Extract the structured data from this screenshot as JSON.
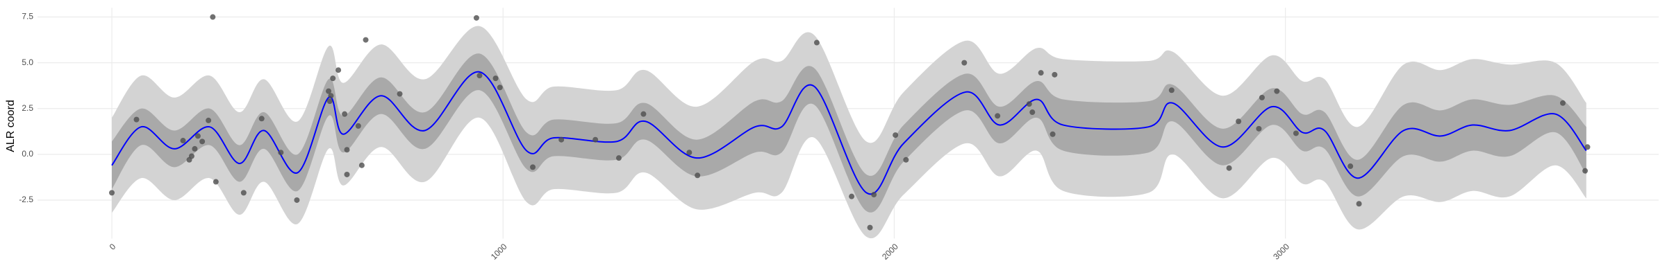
{
  "chart_data": {
    "type": "line",
    "y_label": "ALR coord",
    "xlim": [
      -190,
      3954
    ],
    "ylim": [
      -4.6,
      8.0
    ],
    "xticks": [
      0,
      1000,
      2000,
      3000
    ],
    "yticks": [
      -2.5,
      {
        "value": 0,
        "label": "0.0"
      },
      2.5,
      {
        "value": 5,
        "label": "5.0"
      },
      7.5
    ],
    "grid": true,
    "x": [
      0,
      75,
      160,
      250,
      326,
      389,
      475,
      554,
      592,
      688,
      800,
      940,
      1060,
      1130,
      1290,
      1364,
      1495,
      1644,
      1712,
      1796,
      1929,
      2024,
      2182,
      2269,
      2364,
      2432,
      2650,
      2712,
      2840,
      2965,
      3043,
      3100,
      3185,
      3302,
      3397,
      3478,
      3573,
      3690,
      3769
    ],
    "bands": [
      {
        "color": "#d3d3d3",
        "upper": [
          2.0,
          4.3,
          3.1,
          4.3,
          2.3,
          4.1,
          1.8,
          5.9,
          3.9,
          6.0,
          4.1,
          7.0,
          3.0,
          3.7,
          3.5,
          4.6,
          2.6,
          5.1,
          5.1,
          6.5,
          0.7,
          3.4,
          6.2,
          4.4,
          5.8,
          5.2,
          5.1,
          5.6,
          3.2,
          5.4,
          4.0,
          4.1,
          1.5,
          4.9,
          4.6,
          5.2,
          4.9,
          5.0,
          2.8
        ],
        "lower": [
          -3.2,
          -1.3,
          -2.5,
          -1.3,
          -3.3,
          -1.5,
          -3.8,
          0.3,
          -1.7,
          0.4,
          -1.5,
          2.0,
          -2.6,
          -1.9,
          -2.1,
          -1.0,
          -3.0,
          -2.1,
          -2.1,
          0.9,
          -4.5,
          -2.2,
          0.6,
          -1.2,
          0.2,
          -2.0,
          -2.1,
          0.0,
          -2.4,
          -0.2,
          -1.6,
          -1.5,
          -4.1,
          -2.3,
          -2.6,
          -2.0,
          -2.3,
          -0.6,
          -2.4
        ]
      },
      {
        "color": "#a9a9a9",
        "upper": [
          0.7,
          2.5,
          1.3,
          2.5,
          0.5,
          2.3,
          0.0,
          4.1,
          2.1,
          4.2,
          2.3,
          5.5,
          1.2,
          1.9,
          1.7,
          2.8,
          0.8,
          2.9,
          2.9,
          4.7,
          -1.1,
          1.6,
          4.4,
          2.6,
          4.0,
          3.0,
          2.9,
          3.8,
          1.4,
          3.6,
          2.2,
          2.3,
          -0.3,
          2.7,
          2.4,
          3.0,
          2.7,
          3.2,
          1.5
        ],
        "lower": [
          -1.9,
          0.5,
          -0.7,
          0.5,
          -1.5,
          0.3,
          -2.0,
          2.1,
          0.1,
          2.2,
          0.3,
          3.5,
          -0.8,
          -0.1,
          -0.3,
          0.8,
          -1.2,
          0.1,
          0.1,
          2.7,
          -3.1,
          -0.4,
          2.4,
          0.6,
          2.0,
          0.2,
          0.1,
          1.8,
          -0.6,
          1.6,
          0.2,
          0.3,
          -2.3,
          -0.1,
          -0.4,
          0.2,
          -0.1,
          1.2,
          -1.1
        ]
      }
    ],
    "series": [
      {
        "color": "#0000ff",
        "values": [
          -0.6,
          1.5,
          0.3,
          1.5,
          -0.5,
          1.3,
          -1.0,
          3.1,
          1.1,
          3.2,
          1.3,
          4.5,
          0.2,
          0.9,
          0.7,
          1.8,
          -0.2,
          1.5,
          1.5,
          3.7,
          -2.1,
          0.6,
          3.4,
          1.6,
          3.0,
          1.6,
          1.5,
          2.8,
          0.4,
          2.6,
          1.2,
          1.3,
          -1.3,
          1.3,
          1.0,
          1.6,
          1.3,
          2.2,
          0.2
        ]
      }
    ],
    "points": {
      "color": "#4d4d4d",
      "x": [
        0,
        63,
        182,
        198,
        204,
        212,
        220,
        231,
        247,
        258,
        266,
        337,
        383,
        432,
        473,
        554,
        557,
        560,
        565,
        579,
        595,
        601,
        601,
        630,
        639,
        649,
        736,
        932,
        940,
        981,
        992,
        1076,
        1149,
        1236,
        1296,
        1359,
        1476,
        1497,
        1802,
        1891,
        1938,
        1948,
        2003,
        2030,
        2179,
        2264,
        2345,
        2353,
        2375,
        2405,
        2410,
        2709,
        2856,
        2880,
        2932,
        2940,
        2978,
        3027,
        3166,
        3188,
        3709,
        3766,
        3772
      ],
      "y": [
        -2.1,
        1.9,
        0.75,
        -0.3,
        -0.1,
        0.3,
        1.0,
        0.7,
        1.85,
        7.5,
        -1.5,
        -2.1,
        1.95,
        0.1,
        -2.5,
        3.45,
        2.9,
        3.2,
        4.15,
        4.6,
        2.2,
        0.25,
        -1.1,
        1.55,
        -0.6,
        6.25,
        3.3,
        7.45,
        4.3,
        4.15,
        3.65,
        -0.7,
        0.8,
        0.8,
        -0.2,
        2.2,
        0.1,
        -1.15,
        6.1,
        -2.3,
        -4.0,
        -2.2,
        1.05,
        -0.3,
        5.0,
        2.1,
        2.75,
        2.3,
        4.45,
        1.1,
        4.35,
        3.5,
        -0.75,
        1.8,
        1.4,
        3.1,
        3.45,
        1.15,
        -0.65,
        -2.7,
        2.8,
        -0.9,
        0.4
      ]
    }
  }
}
